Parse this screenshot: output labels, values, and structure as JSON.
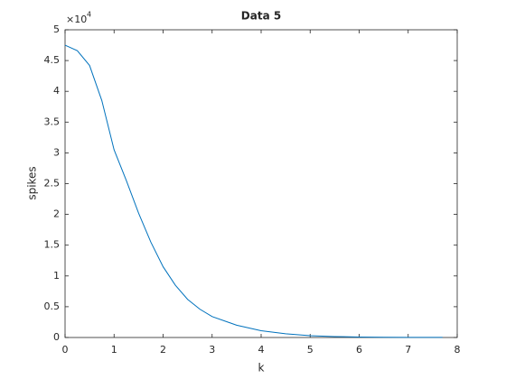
{
  "chart_data": {
    "type": "line",
    "title": "Data 5",
    "x_label": "k",
    "y_label": "spikes",
    "y_multiplier": {
      "base": "×10",
      "exponent": "4"
    },
    "x": [
      0,
      0.25,
      0.5,
      0.75,
      1,
      1.25,
      1.5,
      1.75,
      2,
      2.25,
      2.5,
      2.75,
      3,
      3.5,
      4,
      4.5,
      5,
      5.5,
      6,
      6.5,
      7,
      7.7
    ],
    "series": [
      {
        "color": "#0072bd",
        "values": [
          4.75,
          4.66,
          4.42,
          3.85,
          3.05,
          2.55,
          2.02,
          1.55,
          1.15,
          0.85,
          0.62,
          0.46,
          0.34,
          0.2,
          0.11,
          0.06,
          0.03,
          0.015,
          0.008,
          0.004,
          0.002,
          0.001
        ]
      }
    ],
    "xlim": [
      0,
      8
    ],
    "xticks": [
      0,
      1,
      2,
      3,
      4,
      5,
      6,
      7,
      8
    ],
    "ylim": [
      0,
      5
    ],
    "yticks": [
      0,
      0.5,
      1,
      1.5,
      2,
      2.5,
      3,
      3.5,
      4,
      4.5,
      5
    ]
  }
}
